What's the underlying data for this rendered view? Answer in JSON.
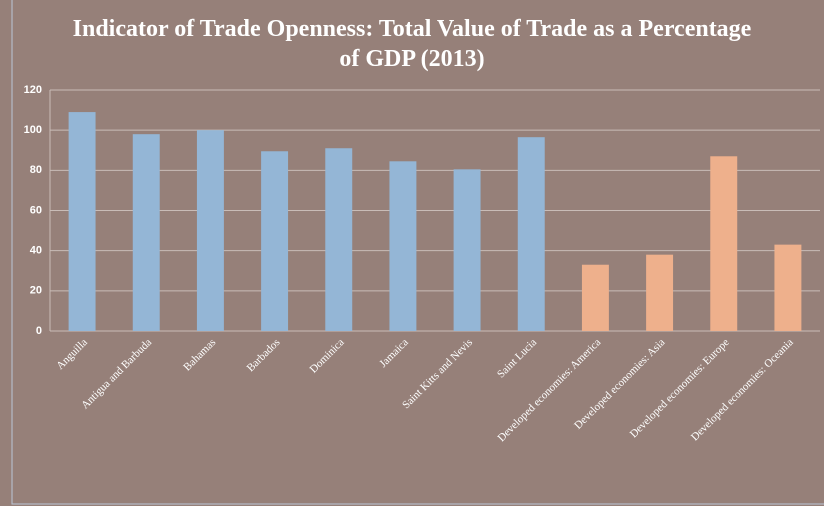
{
  "chart_data": {
    "type": "bar",
    "title": "Indicator of Trade Openness: Total Value of Trade as a Percentage of GDP (2013)",
    "categories": [
      "Anguilla",
      "Antigua and Barbuda",
      "Bahamas",
      "Barbados",
      "Dominica",
      "Jamaica",
      "Saint Kitts and Nevis",
      "Saint Lucia",
      "Developed economies: America",
      "Developed economies: Asia",
      "Developed economies: Europe",
      "Developed economies: Oceania"
    ],
    "values": [
      109,
      98,
      100,
      89.5,
      91,
      84.5,
      80.5,
      96.5,
      33,
      38,
      87,
      43
    ],
    "colors": [
      "#94b6d6",
      "#94b6d6",
      "#94b6d6",
      "#94b6d6",
      "#94b6d6",
      "#94b6d6",
      "#94b6d6",
      "#94b6d6",
      "#eeb08c",
      "#eeb08c",
      "#eeb08c",
      "#eeb08c"
    ],
    "ylim": [
      0,
      120
    ],
    "yticks": [
      0,
      20,
      40,
      60,
      80,
      100,
      120
    ],
    "grid": true
  }
}
